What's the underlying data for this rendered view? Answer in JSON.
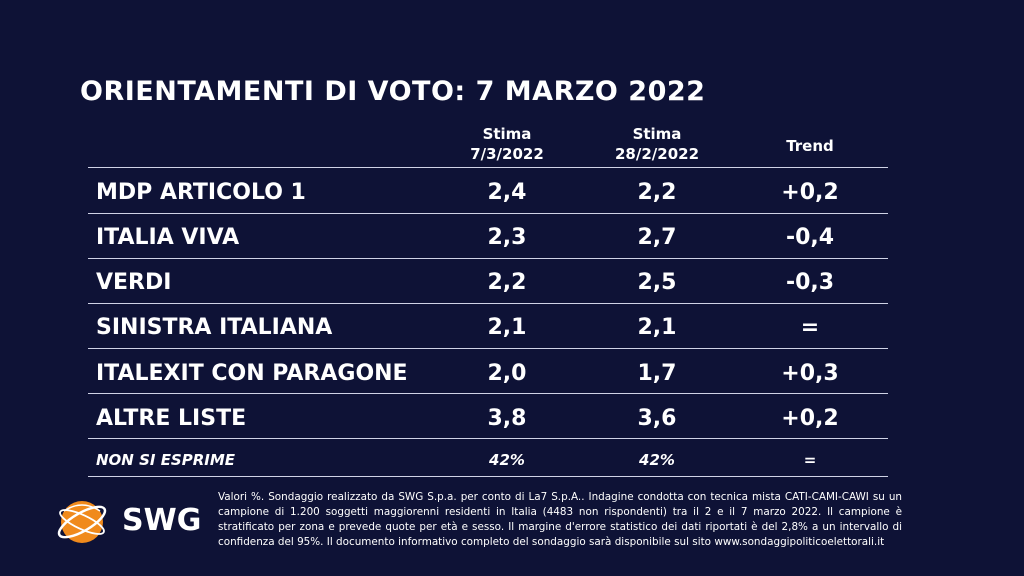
{
  "title": "ORIENTAMENTI DI VOTO: 7 MARZO 2022",
  "columns": {
    "col1": [
      "Stima",
      "7/3/2022"
    ],
    "col2": [
      "Stima",
      "28/2/2022"
    ],
    "col3": "Trend"
  },
  "rows": [
    {
      "label": "MDP ARTICOLO 1",
      "v1": "2,4",
      "v2": "2,2",
      "trend": "+0,2"
    },
    {
      "label": "ITALIA VIVA",
      "v1": "2,3",
      "v2": "2,7",
      "trend": "-0,4"
    },
    {
      "label": "VERDI",
      "v1": "2,2",
      "v2": "2,5",
      "trend": "-0,3"
    },
    {
      "label": "SINISTRA ITALIANA",
      "v1": "2,1",
      "v2": "2,1",
      "trend": "="
    },
    {
      "label": "ITALEXIT CON PARAGONE",
      "v1": "2,0",
      "v2": "1,7",
      "trend": "+0,3"
    },
    {
      "label": "ALTRE LISTE",
      "v1": "3,8",
      "v2": "3,6",
      "trend": "+0,2"
    },
    {
      "label": "NON SI ESPRIME",
      "v1": "42%",
      "v2": "42%",
      "trend": "="
    }
  ],
  "chart_data": {
    "type": "table",
    "title": "ORIENTAMENTI DI VOTO: 7 MARZO 2022",
    "columns": [
      "Stima 7/3/2022",
      "Stima 28/2/2022",
      "Trend"
    ],
    "categories": [
      "MDP ARTICOLO 1",
      "ITALIA VIVA",
      "VERDI",
      "SINISTRA ITALIANA",
      "ITALEXIT CON PARAGONE",
      "ALTRE LISTE",
      "NON SI ESPRIME"
    ],
    "series": [
      {
        "name": "Stima 7/3/2022",
        "values": [
          2.4,
          2.3,
          2.2,
          2.1,
          2.0,
          3.8,
          42
        ]
      },
      {
        "name": "Stima 28/2/2022",
        "values": [
          2.2,
          2.7,
          2.5,
          2.1,
          1.7,
          3.6,
          42
        ]
      },
      {
        "name": "Trend",
        "values": [
          "+0,2",
          "-0,4",
          "-0,3",
          "=",
          "+0,3",
          "+0,2",
          "="
        ]
      }
    ]
  },
  "logo": {
    "text": "SWG"
  },
  "colors": {
    "background": "#0e1236",
    "logo_orange": "#f08a1c"
  },
  "footnote": "Valori %. Sondaggio realizzato da SWG S.p.a. per conto di La7 S.p.A.. Indagine condotta con tecnica mista CATI-CAMI-CAWI su un campione di 1.200 soggetti maggiorenni residenti in Italia (4483 non rispondenti) tra il 2 e il 7 marzo 2022. Il campione è stratificato per zona e prevede quote per età e sesso. Il margine d'errore statistico dei dati riportati è del 2,8% a un intervallo di confidenza del 95%. Il documento informativo completo del sondaggio sarà disponibile sul sito www.sondaggipoliticoelettorali.it"
}
